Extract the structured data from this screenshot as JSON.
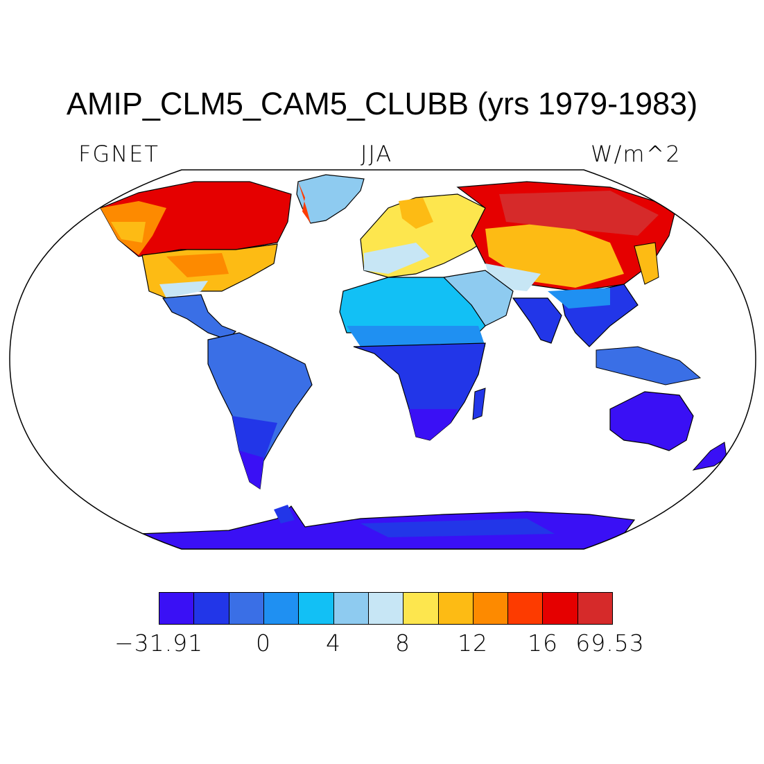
{
  "title": "AMIP_CLM5_CAM5_CLUBB (yrs 1979-1983)",
  "left_label": "FGNET",
  "center_label": "JJA",
  "right_label": "W/m^2",
  "colorbar": {
    "colors": [
      "#3a10f5",
      "#2236e8",
      "#3a6fe6",
      "#1f90f2",
      "#12c0f5",
      "#8ecbf0",
      "#c7e6f5",
      "#fde64e",
      "#fdbb14",
      "#fd8a00",
      "#fd3b00",
      "#e50000",
      "#d62a2a"
    ],
    "labels": [
      "−31.91",
      "0",
      "4",
      "8",
      "12",
      "16",
      "69.53"
    ]
  },
  "map_regions": [
    {
      "region": "greenland",
      "value_class": "light-blue"
    },
    {
      "region": "north-america-north",
      "value_class": "red"
    },
    {
      "region": "north-america-south",
      "value_class": "yellow-orange"
    },
    {
      "region": "south-america",
      "value_class": "blue"
    },
    {
      "region": "europe",
      "value_class": "yellow"
    },
    {
      "region": "siberia",
      "value_class": "red"
    },
    {
      "region": "africa-north",
      "value_class": "light-blue"
    },
    {
      "region": "africa-south",
      "value_class": "dark-blue"
    },
    {
      "region": "india",
      "value_class": "dark-blue"
    },
    {
      "region": "australia",
      "value_class": "dark-blue"
    },
    {
      "region": "antarctica",
      "value_class": "dark-blue"
    }
  ]
}
